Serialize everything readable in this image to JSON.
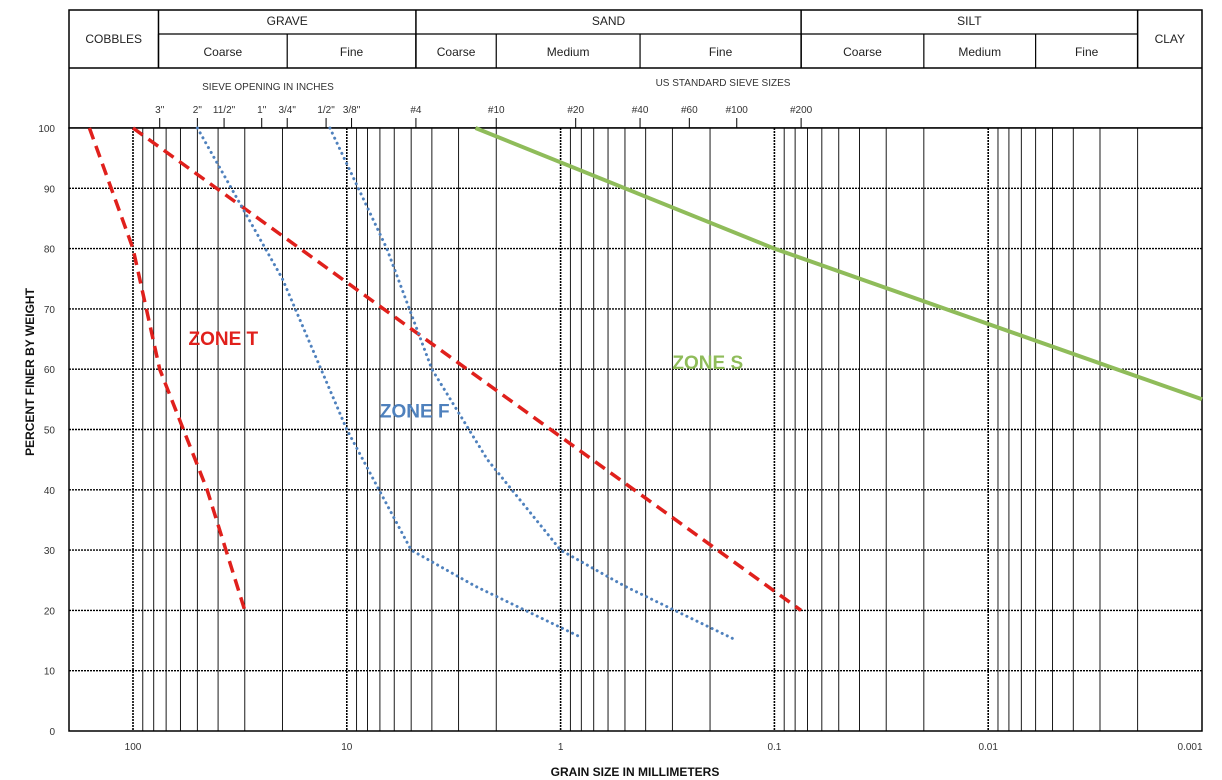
{
  "chart_data": {
    "type": "line",
    "xlabel": "GRAIN SIZE IN MILLIMETERS",
    "ylabel": "PERCENT FINER BY WEIGHT",
    "x_scale": "log",
    "x_reversed": true,
    "xlim": [
      200,
      0.001
    ],
    "ylim": [
      0,
      100
    ],
    "grid": true,
    "x_ticks": [
      {
        "value": 100,
        "label": "100"
      },
      {
        "value": 10,
        "label": "10"
      },
      {
        "value": 1,
        "label": "1"
      },
      {
        "value": 0.1,
        "label": "0.1"
      },
      {
        "value": 0.01,
        "label": "0.01"
      },
      {
        "value": 0.001,
        "label": "0.001"
      }
    ],
    "y_ticks": [
      0,
      10,
      20,
      30,
      40,
      50,
      60,
      70,
      80,
      90,
      100
    ],
    "classification": {
      "row1": [
        {
          "label": "COBBLES",
          "from": 200,
          "to": 76
        },
        {
          "label": "GRAVE",
          "from": 76,
          "to": 4.75
        },
        {
          "label": "SAND",
          "from": 4.75,
          "to": 0.075
        },
        {
          "label": "SILT",
          "from": 0.075,
          "to": 0.002
        },
        {
          "label": "CLAY",
          "from": 0.002,
          "to": 0.001
        }
      ],
      "row2": [
        {
          "label": "Coarse",
          "from": 76,
          "to": 19
        },
        {
          "label": "Fine",
          "from": 19,
          "to": 4.75
        },
        {
          "label": "Coarse",
          "from": 4.75,
          "to": 2.0
        },
        {
          "label": "Medium",
          "from": 2.0,
          "to": 0.425
        },
        {
          "label": "Fine",
          "from": 0.425,
          "to": 0.075
        },
        {
          "label": "Coarse",
          "from": 0.075,
          "to": 0.02
        },
        {
          "label": "Medium",
          "from": 0.02,
          "to": 0.006
        },
        {
          "label": "Fine",
          "from": 0.006,
          "to": 0.002
        }
      ]
    },
    "sieve_header_left": "SIEVE OPENING IN INCHES",
    "sieve_header_right": "US STANDARD SIEVE SIZES",
    "sieve_marks": [
      {
        "label": "3\"",
        "value": 75
      },
      {
        "label": "2\"",
        "value": 50
      },
      {
        "label": "11/2\"",
        "value": 37.5
      },
      {
        "label": "1\"",
        "value": 25
      },
      {
        "label": "3/4\"",
        "value": 19
      },
      {
        "label": "1/2\"",
        "value": 12.5
      },
      {
        "label": "3/8\"",
        "value": 9.5
      },
      {
        "label": "#4",
        "value": 4.75
      },
      {
        "label": "#10",
        "value": 2.0
      },
      {
        "label": "#20",
        "value": 0.85
      },
      {
        "label": "#40",
        "value": 0.425
      },
      {
        "label": "#60",
        "value": 0.25
      },
      {
        "label": "#100",
        "value": 0.15
      },
      {
        "label": "#200",
        "value": 0.075
      }
    ],
    "series": [
      {
        "color": "#8fbc5a",
        "style": "solid",
        "points": [
          [
            2.5,
            100
          ],
          [
            0.1,
            80
          ],
          [
            0.001,
            55
          ]
        ]
      },
      {
        "color": "#e0201c",
        "style": "dashed",
        "points": [
          [
            100,
            100
          ],
          [
            0.075,
            20
          ]
        ]
      },
      {
        "color": "#e0201c",
        "style": "dashed",
        "points": [
          [
            160,
            100
          ],
          [
            100,
            80
          ],
          [
            75,
            60
          ],
          [
            45,
            40
          ],
          [
            30,
            20
          ]
        ]
      },
      {
        "color": "#4f81bd",
        "style": "dotted",
        "points": [
          [
            50,
            100
          ],
          [
            20,
            75
          ],
          [
            10,
            50
          ],
          [
            5,
            30
          ],
          [
            2.5,
            24
          ],
          [
            0.8,
            15.5
          ]
        ]
      },
      {
        "color": "#4f81bd",
        "style": "dotted",
        "points": [
          [
            12,
            100
          ],
          [
            6.5,
            80
          ],
          [
            4,
            60
          ],
          [
            2.2,
            45
          ],
          [
            1.0,
            30
          ],
          [
            0.5,
            24
          ],
          [
            0.15,
            15
          ]
        ]
      }
    ],
    "annotations": [
      {
        "text": "ZONE T",
        "color": "#e0201c",
        "x": 55,
        "y": 64
      },
      {
        "text": "ZONE F",
        "color": "#4f81bd",
        "x": 7,
        "y": 52
      },
      {
        "text": "ZONE S",
        "color": "#8fbc5a",
        "x": 0.3,
        "y": 60
      }
    ]
  }
}
